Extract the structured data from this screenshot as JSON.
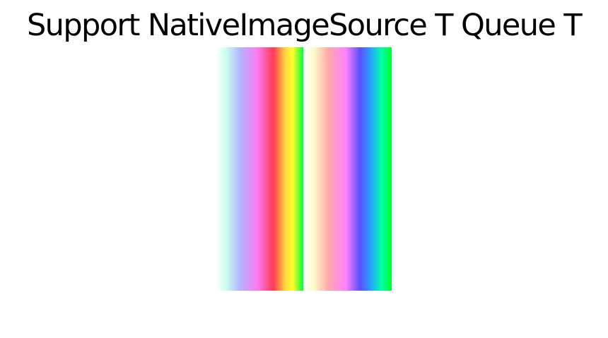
{
  "header": {
    "title": "Support NativeImageSource T Queue T"
  },
  "images": [
    {
      "name": "native-image-source-left"
    },
    {
      "name": "native-image-source-right"
    }
  ]
}
